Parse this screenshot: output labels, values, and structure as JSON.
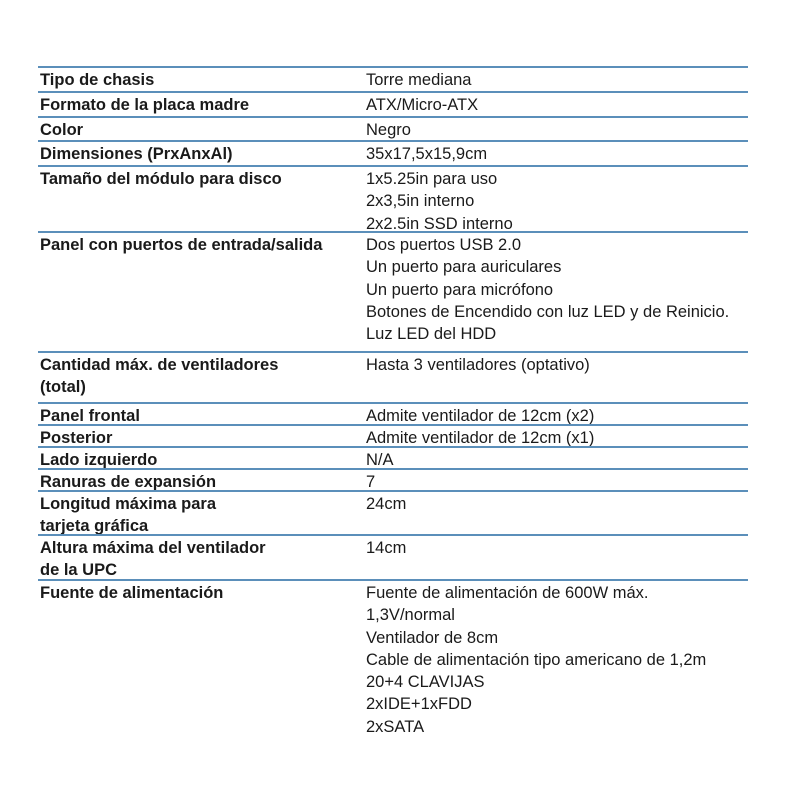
{
  "specs": [
    {
      "label": [
        "Tipo de chasis"
      ],
      "value": [
        "Torre mediana"
      ]
    },
    {
      "label": [
        "Formato de la placa madre"
      ],
      "value": [
        "ATX/Micro-ATX"
      ]
    },
    {
      "label": [
        "Color"
      ],
      "value": [
        "Negro"
      ]
    },
    {
      "label": [
        "Dimensiones (PrxAnxAl)"
      ],
      "value": [
        "35x17,5x15,9cm"
      ]
    },
    {
      "label": [
        "Tamaño del módulo para disco"
      ],
      "value": [
        "1x5.25in para uso",
        "2x3,5in interno",
        "2x2.5in SSD interno"
      ]
    },
    {
      "label": [
        "Panel con puertos de entrada/salida"
      ],
      "value": [
        "Dos puertos USB 2.0",
        "Un puerto para auriculares",
        "Un puerto para micrófono",
        "Botones de Encendido con luz LED y de Reinicio.",
        "Luz LED del HDD"
      ]
    },
    {
      "label": [
        "Cantidad máx. de ventiladores",
        "(total)"
      ],
      "value": [
        "Hasta 3 ventiladores (optativo)"
      ]
    },
    {
      "label": [
        "Panel frontal"
      ],
      "value": [
        "Admite ventilador de 12cm (x2)"
      ]
    },
    {
      "label": [
        "Posterior"
      ],
      "value": [
        "Admite ventilador de 12cm (x1)"
      ]
    },
    {
      "label": [
        "Lado izquierdo"
      ],
      "value": [
        "N/A"
      ]
    },
    {
      "label": [
        "Ranuras de expansión"
      ],
      "value": [
        "7"
      ]
    },
    {
      "label": [
        "Longitud máxima para",
        "tarjeta gráfica"
      ],
      "value": [
        "24cm"
      ]
    },
    {
      "label": [
        "Altura máxima del ventilador",
        "de la UPC"
      ],
      "value": [
        "14cm"
      ]
    },
    {
      "label": [
        "Fuente de alimentación"
      ],
      "value": [
        "Fuente de alimentación de 600W máx.",
        "1,3V/normal",
        "Ventilador de 8cm",
        "Cable de alimentación tipo americano de 1,2m",
        "20+4 CLAVIJAS",
        "2xIDE+1xFDD",
        "2xSATA"
      ]
    }
  ],
  "colors": {
    "rule": "#5b8fba",
    "text": "#1a1a1a"
  }
}
